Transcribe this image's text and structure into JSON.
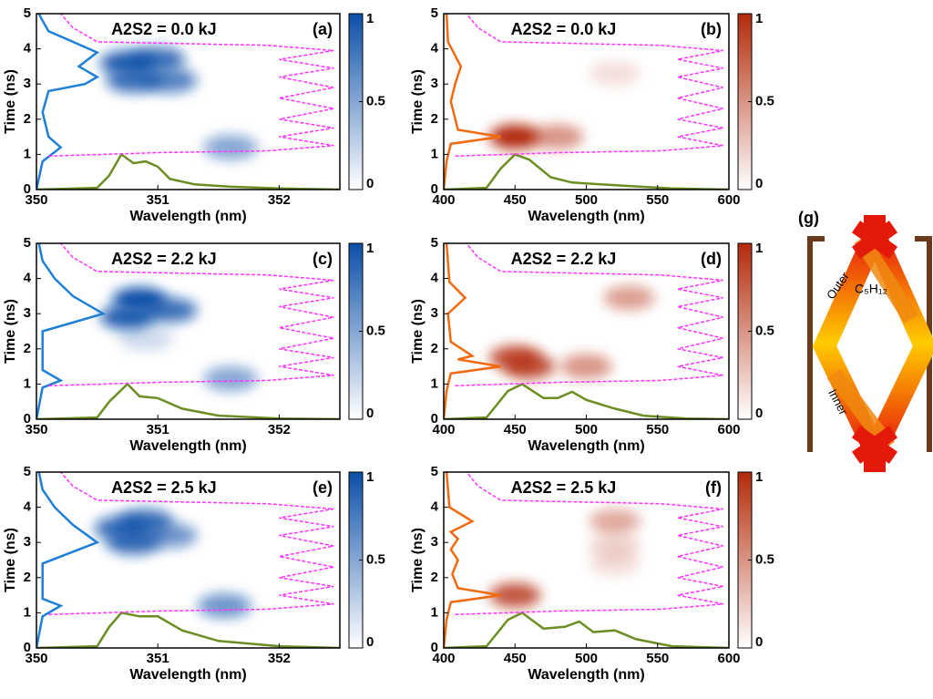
{
  "chart_data": [
    {
      "type": "heatmap",
      "title": "A2S2 = 0.0 kJ",
      "panel_label": "(a)",
      "xlabel": "Wavelength (nm)",
      "ylabel": "Time (ns)",
      "xlim": [
        350,
        352.5
      ],
      "xticks": [
        350,
        351,
        352
      ],
      "ylim": [
        0,
        5
      ],
      "yticks": [
        0,
        1,
        2,
        3,
        4,
        5
      ],
      "colorbar_lim": [
        0,
        1
      ],
      "colorbar_ticks": [
        0,
        0.5,
        1
      ],
      "heat_color": "#0b4fa8",
      "spots": {
        "x": [
          350.75,
          351.0,
          350.8,
          351.1,
          351.6
        ],
        "y": [
          3.6,
          3.7,
          3.1,
          3.1,
          1.2
        ],
        "values": [
          0.9,
          0.8,
          0.8,
          0.7,
          0.5
        ]
      },
      "series": [
        {
          "color": "#6b8e23",
          "x": [
            350,
            350.5,
            350.6,
            350.7,
            350.8,
            350.9,
            351.0,
            351.1,
            351.3,
            351.6,
            352,
            352.5
          ],
          "values": [
            0,
            0.05,
            0.4,
            1.0,
            0.75,
            0.8,
            0.65,
            0.3,
            0.15,
            0.08,
            0.03,
            0
          ]
        },
        {
          "color": "#1e7fd6",
          "x": [
            350,
            350.05,
            350.2,
            350.1,
            350.05,
            350.1,
            350.4,
            350.5,
            350.35,
            350.5,
            350.3,
            350.1,
            350.05,
            350.02
          ],
          "values": [
            0,
            0.8,
            1.2,
            1.5,
            2.2,
            2.8,
            3.0,
            3.2,
            3.5,
            3.9,
            4.2,
            4.5,
            4.8,
            5
          ]
        },
        {
          "color": "#ff33ff",
          "dashed": true,
          "x": [
            350.1,
            351.0,
            351.9,
            352.45,
            352.0,
            352.45,
            352.0,
            352.45,
            352.0,
            352.45,
            352.0,
            352.45,
            352.0,
            352.45,
            351.9,
            350.5,
            350.3,
            350.2
          ],
          "values": [
            0.95,
            1.05,
            1.1,
            1.25,
            1.5,
            1.75,
            2.0,
            2.3,
            2.6,
            2.9,
            3.2,
            3.45,
            3.7,
            3.95,
            4.1,
            4.2,
            4.6,
            5
          ]
        }
      ]
    },
    {
      "type": "heatmap",
      "title": "A2S2 = 0.0 kJ",
      "panel_label": "(b)",
      "xlabel": "Wavelength (nm)",
      "ylabel": "Time (ns)",
      "xlim": [
        400,
        600
      ],
      "xticks": [
        400,
        450,
        500,
        550,
        600
      ],
      "ylim": [
        0,
        5
      ],
      "yticks": [
        0,
        1,
        2,
        3,
        4,
        5
      ],
      "colorbar_lim": [
        0,
        1
      ],
      "colorbar_ticks": [
        0,
        0.5,
        1
      ],
      "heat_color": "#b22a0a",
      "spots": {
        "x": [
          450,
          480,
          520
        ],
        "y": [
          1.5,
          1.5,
          3.3
        ],
        "values": [
          1.0,
          0.5,
          0.15
        ]
      },
      "series": [
        {
          "color": "#6b8e23",
          "x": [
            400,
            430,
            440,
            450,
            460,
            475,
            490,
            510,
            530,
            560,
            600
          ],
          "values": [
            0,
            0.05,
            0.6,
            1.0,
            0.85,
            0.35,
            0.2,
            0.15,
            0.1,
            0.03,
            0
          ]
        },
        {
          "color": "#f26a10",
          "x": [
            400,
            402,
            405,
            440,
            410,
            405,
            408,
            412,
            403,
            402
          ],
          "values": [
            0,
            0.8,
            1.3,
            1.5,
            1.7,
            2.5,
            3.0,
            3.5,
            4.2,
            5
          ]
        },
        {
          "color": "#ff33ff",
          "dashed": true,
          "x": [
            408,
            480,
            552,
            596,
            564,
            596,
            564,
            596,
            564,
            596,
            564,
            596,
            564,
            596,
            552,
            440,
            424,
            416
          ],
          "values": [
            0.95,
            1.05,
            1.1,
            1.25,
            1.5,
            1.75,
            2.0,
            2.3,
            2.6,
            2.9,
            3.2,
            3.45,
            3.7,
            3.95,
            4.1,
            4.2,
            4.6,
            5
          ]
        }
      ]
    },
    {
      "type": "heatmap",
      "title": "A2S2 = 2.2 kJ",
      "panel_label": "(c)",
      "xlabel": "Wavelength (nm)",
      "ylabel": "Time (ns)",
      "xlim": [
        350,
        352.5
      ],
      "xticks": [
        350,
        351,
        352
      ],
      "ylim": [
        0,
        5
      ],
      "yticks": [
        0,
        1,
        2,
        3,
        4,
        5
      ],
      "colorbar_lim": [
        0,
        1
      ],
      "colorbar_ticks": [
        0,
        0.5,
        1
      ],
      "heat_color": "#0b4fa8",
      "spots": {
        "x": [
          350.75,
          350.85,
          351.1,
          350.9,
          351.6
        ],
        "y": [
          2.9,
          3.4,
          3.1,
          2.3,
          1.15
        ],
        "values": [
          0.9,
          1.0,
          0.8,
          0.2,
          0.5
        ]
      },
      "series": [
        {
          "color": "#6b8e23",
          "x": [
            350,
            350.5,
            350.6,
            350.75,
            350.85,
            351.0,
            351.2,
            351.5,
            352,
            352.5
          ],
          "values": [
            0,
            0.05,
            0.5,
            1.0,
            0.65,
            0.6,
            0.3,
            0.1,
            0.02,
            0
          ]
        },
        {
          "color": "#1e7fd6",
          "x": [
            350,
            350.05,
            350.2,
            350.05,
            350.05,
            350.55,
            350.3,
            350.15,
            350.05,
            350.02
          ],
          "values": [
            0,
            0.9,
            1.1,
            1.4,
            2.5,
            3.0,
            3.5,
            4.0,
            4.5,
            5
          ]
        },
        {
          "color": "#ff33ff",
          "dashed": true,
          "x": [
            350.1,
            351.0,
            351.9,
            352.45,
            352.0,
            352.45,
            352.0,
            352.45,
            352.0,
            352.45,
            352.0,
            352.45,
            352.0,
            352.45,
            351.9,
            350.5,
            350.3,
            350.2
          ],
          "values": [
            0.95,
            1.05,
            1.1,
            1.25,
            1.5,
            1.75,
            2.0,
            2.3,
            2.6,
            2.9,
            3.2,
            3.45,
            3.7,
            3.95,
            4.1,
            4.2,
            4.6,
            5
          ]
        }
      ]
    },
    {
      "type": "heatmap",
      "title": "A2S2 = 2.2 kJ",
      "panel_label": "(d)",
      "xlabel": "Wavelength (nm)",
      "ylabel": "Time (ns)",
      "xlim": [
        400,
        600
      ],
      "xticks": [
        400,
        450,
        500,
        550,
        600
      ],
      "ylim": [
        0,
        5
      ],
      "yticks": [
        0,
        1,
        2,
        3,
        4,
        5
      ],
      "colorbar_lim": [
        0,
        1
      ],
      "colorbar_ticks": [
        0,
        0.5,
        1
      ],
      "heat_color": "#b22a0a",
      "spots": {
        "x": [
          450,
          460,
          500,
          530
        ],
        "y": [
          1.75,
          1.5,
          1.5,
          3.45
        ],
        "values": [
          0.8,
          0.8,
          0.5,
          0.45
        ]
      },
      "series": [
        {
          "color": "#6b8e23",
          "x": [
            400,
            430,
            445,
            455,
            470,
            480,
            490,
            500,
            520,
            540,
            570,
            600
          ],
          "values": [
            0,
            0.05,
            0.8,
            1.0,
            0.6,
            0.6,
            0.78,
            0.55,
            0.3,
            0.1,
            0.02,
            0
          ]
        },
        {
          "color": "#f26a10",
          "x": [
            400,
            402,
            405,
            440,
            410,
            420,
            405,
            403,
            415,
            404,
            402
          ],
          "values": [
            0,
            0.8,
            1.3,
            1.5,
            1.7,
            1.8,
            2.2,
            3.0,
            3.45,
            3.9,
            5
          ]
        },
        {
          "color": "#ff33ff",
          "dashed": true,
          "x": [
            408,
            480,
            552,
            596,
            564,
            596,
            564,
            596,
            564,
            596,
            564,
            596,
            564,
            596,
            552,
            440,
            424,
            416
          ],
          "values": [
            0.95,
            1.05,
            1.1,
            1.25,
            1.5,
            1.75,
            2.0,
            2.3,
            2.6,
            2.9,
            3.2,
            3.45,
            3.7,
            3.95,
            4.1,
            4.2,
            4.6,
            5
          ]
        }
      ]
    },
    {
      "type": "heatmap",
      "title": "A2S2 = 2.5 kJ",
      "panel_label": "(e)",
      "xlabel": "Wavelength (nm)",
      "ylabel": "Time (ns)",
      "xlim": [
        350,
        352.5
      ],
      "xticks": [
        350,
        351,
        352
      ],
      "ylim": [
        0,
        5
      ],
      "yticks": [
        0,
        1,
        2,
        3,
        4,
        5
      ],
      "colorbar_lim": [
        0,
        1
      ],
      "colorbar_ticks": [
        0,
        0.5,
        1
      ],
      "heat_color": "#0b4fa8",
      "spots": {
        "x": [
          350.7,
          350.9,
          350.8,
          351.1,
          351.55
        ],
        "y": [
          3.4,
          3.6,
          3.0,
          3.2,
          1.2
        ],
        "values": [
          0.8,
          0.8,
          0.8,
          0.6,
          0.6
        ]
      },
      "series": [
        {
          "color": "#6b8e23",
          "x": [
            350,
            350.5,
            350.6,
            350.7,
            350.85,
            351.0,
            351.2,
            351.5,
            352,
            352.5
          ],
          "values": [
            0,
            0.05,
            0.6,
            1.0,
            0.9,
            0.9,
            0.5,
            0.2,
            0.05,
            0
          ]
        },
        {
          "color": "#1e7fd6",
          "x": [
            350,
            350.05,
            350.2,
            350.05,
            350.05,
            350.5,
            350.3,
            350.15,
            350.05,
            350.02
          ],
          "values": [
            0,
            0.9,
            1.2,
            1.4,
            2.4,
            3.0,
            3.5,
            4.0,
            4.5,
            5
          ]
        },
        {
          "color": "#ff33ff",
          "dashed": true,
          "x": [
            350.1,
            351.0,
            351.9,
            352.45,
            352.0,
            352.45,
            352.0,
            352.45,
            352.0,
            352.45,
            352.0,
            352.45,
            352.0,
            352.45,
            351.9,
            350.5,
            350.3,
            350.2
          ],
          "values": [
            0.95,
            1.05,
            1.1,
            1.25,
            1.5,
            1.75,
            2.0,
            2.3,
            2.6,
            2.9,
            3.2,
            3.45,
            3.7,
            3.95,
            4.1,
            4.2,
            4.6,
            5
          ]
        }
      ]
    },
    {
      "type": "heatmap",
      "title": "A2S2 = 2.5 kJ",
      "panel_label": "(f)",
      "xlabel": "Wavelength (nm)",
      "ylabel": "Time (ns)",
      "xlim": [
        400,
        600
      ],
      "xticks": [
        400,
        450,
        500,
        550,
        600
      ],
      "ylim": [
        0,
        5
      ],
      "yticks": [
        0,
        1,
        2,
        3,
        4,
        5
      ],
      "colorbar_lim": [
        0,
        1
      ],
      "colorbar_ticks": [
        0,
        0.5,
        1
      ],
      "heat_color": "#b22a0a",
      "spots": {
        "x": [
          450,
          520,
          520,
          520
        ],
        "y": [
          1.5,
          3.6,
          2.9,
          2.4
        ],
        "values": [
          0.8,
          0.4,
          0.2,
          0.15
        ]
      },
      "series": [
        {
          "color": "#6b8e23",
          "x": [
            400,
            430,
            445,
            455,
            470,
            485,
            495,
            505,
            520,
            535,
            560,
            600
          ],
          "values": [
            0,
            0.05,
            0.8,
            1.0,
            0.55,
            0.6,
            0.75,
            0.45,
            0.5,
            0.25,
            0.05,
            0
          ]
        },
        {
          "color": "#f26a10",
          "x": [
            400,
            402,
            405,
            440,
            410,
            406,
            410,
            405,
            410,
            405,
            420,
            404,
            402
          ],
          "values": [
            0,
            0.8,
            1.3,
            1.5,
            1.7,
            2.1,
            2.5,
            2.8,
            3.1,
            3.3,
            3.6,
            4.0,
            5
          ]
        },
        {
          "color": "#ff33ff",
          "dashed": true,
          "x": [
            408,
            480,
            552,
            596,
            564,
            596,
            564,
            596,
            564,
            596,
            564,
            596,
            564,
            596,
            552,
            440,
            424,
            416
          ],
          "values": [
            0.95,
            1.05,
            1.1,
            1.25,
            1.5,
            1.75,
            2.0,
            2.3,
            2.6,
            2.9,
            3.2,
            3.45,
            3.7,
            3.95,
            4.1,
            4.2,
            4.6,
            5
          ]
        }
      ]
    }
  ],
  "diagram": {
    "panel_label": "(g)",
    "outer_label": "Outer",
    "inner_label": "Inner",
    "target_label": "C₅H₁₂"
  }
}
